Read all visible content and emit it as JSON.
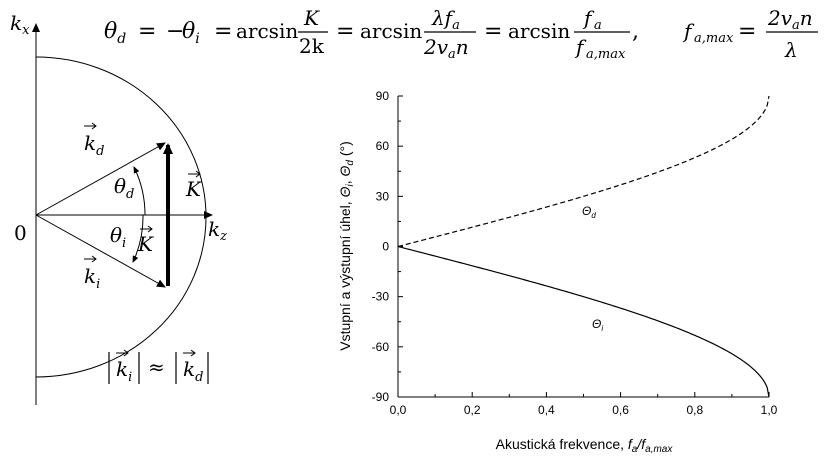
{
  "equation": {
    "theta_d": "θ",
    "theta_d_sub": "d",
    "eq1": "=",
    "minus": "−",
    "theta_i": "θ",
    "theta_i_sub": "i",
    "eq2": "=",
    "arcsin1": "arcsin",
    "frac1_num": "K",
    "frac1_den": "2k",
    "eq3": "=",
    "arcsin2": "arcsin",
    "frac2_num_lambda": "λf",
    "frac2_num_sub": "a",
    "frac2_den": "2v",
    "frac2_den_sub": "a",
    "frac2_den_tail": "n",
    "eq4": "=",
    "arcsin3": "arcsin",
    "frac3_num": "f",
    "frac3_num_sub": "a",
    "frac3_den": "f",
    "frac3_den_sub": "a,max",
    "comma": ",",
    "fmax_lhs": "f",
    "fmax_lhs_sub": "a,max",
    "eq5": "=",
    "frac4_num": "2v",
    "frac4_num_sub": "a",
    "frac4_num_tail": "n",
    "frac4_den": "λ"
  },
  "diagram": {
    "kx_label": "k",
    "kx_sub": "x",
    "kz_label": "k",
    "kz_sub": "z",
    "origin_label": "0",
    "kd_label": "k",
    "kd_sub": "d",
    "ki_label": "k",
    "ki_sub": "i",
    "theta_d_label": "θ",
    "theta_d_sub": "d",
    "theta_i_label": "θ",
    "theta_i_sub": "i",
    "K_small_label": "K",
    "K_big_label": "K",
    "modulus_left": "k",
    "modulus_left_sub": "i",
    "approx": "≈",
    "modulus_right": "k",
    "modulus_right_sub": "d"
  },
  "chart_data": {
    "type": "line",
    "xlabel_prefix": "Akustická frekvence, ",
    "xlabel_f1": "f",
    "xlabel_f1_sub": "a",
    "xlabel_slash": "/",
    "xlabel_f2": "f",
    "xlabel_f2_sub": "a,max",
    "ylabel_prefix": "Vstupní a výstupní úhel, ",
    "ylabel_t1": "Θ",
    "ylabel_t1_sub": "i",
    "ylabel_comma": ", ",
    "ylabel_t2": "Θ",
    "ylabel_t2_sub": "d",
    "ylabel_unit": " (°)",
    "xlim": [
      0,
      1
    ],
    "ylim": [
      -90,
      90
    ],
    "x_ticks": [
      "0,0",
      "0,2",
      "0,4",
      "0,6",
      "0,8",
      "1,0"
    ],
    "y_ticks": [
      "90",
      "60",
      "30",
      "0",
      "-30",
      "-60",
      "-90"
    ],
    "x_tick_values": [
      0,
      0.2,
      0.4,
      0.6,
      0.8,
      1.0
    ],
    "y_tick_values": [
      90,
      60,
      30,
      0,
      -30,
      -60,
      -90
    ],
    "series": [
      {
        "name": "Θd",
        "label": "Θ",
        "label_sub": "d",
        "style": "dashed",
        "x": [
          0,
          0.1,
          0.2,
          0.3,
          0.4,
          0.5,
          0.6,
          0.7,
          0.8,
          0.9,
          0.95,
          0.99,
          1.0
        ],
        "y": [
          0,
          5.74,
          11.54,
          17.46,
          23.58,
          30.0,
          36.87,
          44.43,
          53.13,
          64.16,
          71.81,
          81.89,
          90.0
        ]
      },
      {
        "name": "Θi",
        "label": "Θ",
        "label_sub": "i",
        "style": "solid",
        "x": [
          0,
          0.1,
          0.2,
          0.3,
          0.4,
          0.5,
          0.6,
          0.7,
          0.8,
          0.9,
          0.95,
          0.99,
          1.0
        ],
        "y": [
          0,
          -5.74,
          -11.54,
          -17.46,
          -23.58,
          -30.0,
          -36.87,
          -44.43,
          -53.13,
          -64.16,
          -71.81,
          -81.89,
          -90.0
        ]
      }
    ]
  }
}
